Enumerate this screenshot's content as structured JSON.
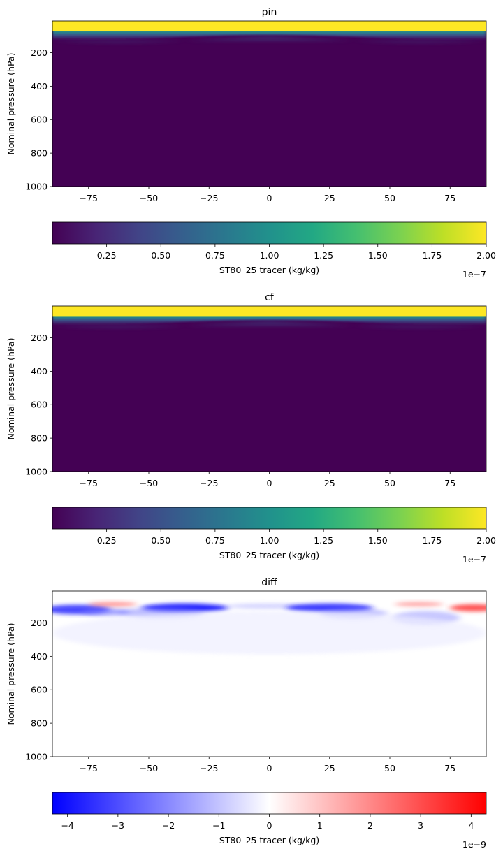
{
  "chart_data": [
    {
      "type": "heatmap",
      "title": "pin",
      "ylabel": "Nominal pressure (hPa)",
      "xlim": [
        -90,
        90
      ],
      "ylim": [
        1000,
        10
      ],
      "xticks": [
        -75,
        -50,
        -25,
        0,
        25,
        50,
        75
      ],
      "yticks": [
        200,
        400,
        600,
        800,
        1000
      ],
      "colormap": "viridis",
      "field": "tracer concentration: ~2.0e-7 kg/kg above ~70-130 hPa (tropopause lower at the poles, higher near the equator), sharply decaying to ~0 below",
      "colorbar": {
        "label": "ST80_25 tracer (kg/kg)",
        "range": [
          0,
          2.0
        ],
        "ticks": [
          0.25,
          0.5,
          0.75,
          1.0,
          1.25,
          1.5,
          1.75,
          2.0
        ],
        "tick_labels": [
          "0.25",
          "0.50",
          "0.75",
          "1.00",
          "1.25",
          "1.50",
          "1.75",
          "2.00"
        ],
        "offset_text": "1e−7"
      }
    },
    {
      "type": "heatmap",
      "title": "cf",
      "ylabel": "Nominal pressure (hPa)",
      "xlim": [
        -90,
        90
      ],
      "ylim": [
        1000,
        10
      ],
      "xticks": [
        -75,
        -50,
        -25,
        0,
        25,
        50,
        75
      ],
      "yticks": [
        200,
        400,
        600,
        800,
        1000
      ],
      "colormap": "viridis",
      "field": "same structure as pin",
      "colorbar": {
        "label": "ST80_25 tracer (kg/kg)",
        "range": [
          0,
          2.0
        ],
        "ticks": [
          0.25,
          0.5,
          0.75,
          1.0,
          1.25,
          1.5,
          1.75,
          2.0
        ],
        "tick_labels": [
          "0.25",
          "0.50",
          "0.75",
          "1.00",
          "1.25",
          "1.50",
          "1.75",
          "2.00"
        ],
        "offset_text": "1e−7"
      }
    },
    {
      "type": "heatmap",
      "title": "diff",
      "ylabel": "Nominal pressure (hPa)",
      "xlim": [
        -90,
        90
      ],
      "ylim": [
        1000,
        10
      ],
      "xticks": [
        -75,
        -50,
        -25,
        0,
        25,
        50,
        75
      ],
      "yticks": [
        200,
        400,
        600,
        800,
        1000
      ],
      "colormap": "bwr",
      "field": "differences concentrated near 70-170 hPa; negative (blue) minima near -80, -30 and +25 deg; positive (red) near -65 and +60 to +90 deg; ~0 elsewhere",
      "colorbar": {
        "label": "ST80_25 tracer (kg/kg)",
        "range": [
          -4.3,
          4.3
        ],
        "ticks": [
          -4,
          -3,
          -2,
          -1,
          0,
          1,
          2,
          3,
          4
        ],
        "tick_labels": [
          "−4",
          "−3",
          "−2",
          "−1",
          "0",
          "1",
          "2",
          "3",
          "4"
        ],
        "offset_text": "1e−9"
      }
    }
  ]
}
